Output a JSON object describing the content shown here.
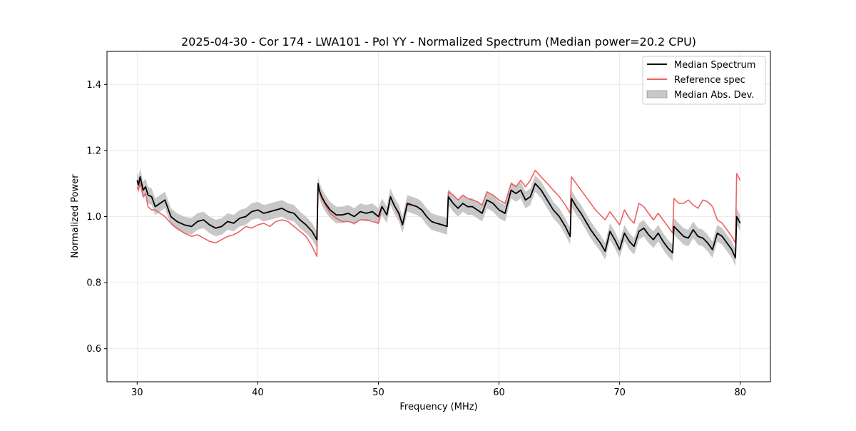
{
  "chart_data": {
    "type": "line",
    "title": "2025-04-30 - Cor 174 - LWA101 - Pol YY - Normalized Spectrum (Median power=20.2 CPU)",
    "xlabel": "Frequency (MHz)",
    "ylabel": "Normalized Power",
    "xlim": [
      27.5,
      82.5
    ],
    "ylim": [
      0.5,
      1.5
    ],
    "xticks": [
      30,
      40,
      50,
      60,
      70,
      80
    ],
    "xtick_labels": [
      "30",
      "40",
      "50",
      "60",
      "70",
      "80"
    ],
    "yticks": [
      0.6,
      0.8,
      1.0,
      1.2,
      1.4
    ],
    "ytick_labels": [
      "0.6",
      "0.8",
      "1.0",
      "1.2",
      "1.4"
    ],
    "grid": true,
    "legend_position": "upper right",
    "colors": {
      "median": "#000000",
      "reference": "#f06060",
      "mad": "#c8c8c8",
      "grid": "#e6e6e6"
    },
    "series": [
      {
        "name": "Median Spectrum",
        "x": [
          30.0,
          30.1,
          30.25,
          30.5,
          30.7,
          30.9,
          31.2,
          31.5,
          31.9,
          32.3,
          32.8,
          33.3,
          33.9,
          34.5,
          35.0,
          35.5,
          36.0,
          36.5,
          37.0,
          37.5,
          38.0,
          38.5,
          39.0,
          39.5,
          40.0,
          40.5,
          41.0,
          41.5,
          42.0,
          42.5,
          43.0,
          43.5,
          44.0,
          44.5,
          44.9,
          45.0,
          45.1,
          45.3,
          45.6,
          46.0,
          46.5,
          47.0,
          47.5,
          48.0,
          48.5,
          49.0,
          49.5,
          50.0,
          50.3,
          50.7,
          51.0,
          51.3,
          51.7,
          52.0,
          52.4,
          52.8,
          53.2,
          53.6,
          54.0,
          54.4,
          54.8,
          55.3,
          55.7,
          55.8,
          56.2,
          56.6,
          57.0,
          57.4,
          57.8,
          58.2,
          58.6,
          59.0,
          59.5,
          60.0,
          60.5,
          61.0,
          61.4,
          61.8,
          62.2,
          62.6,
          63.0,
          63.5,
          64.0,
          64.5,
          65.0,
          65.5,
          65.9,
          66.0,
          66.4,
          66.8,
          67.2,
          67.6,
          68.0,
          68.4,
          68.8,
          69.2,
          69.6,
          70.0,
          70.4,
          70.8,
          71.2,
          71.6,
          72.0,
          72.4,
          72.8,
          73.2,
          73.6,
          74.0,
          74.4,
          74.5,
          74.9,
          75.3,
          75.7,
          76.1,
          76.5,
          76.9,
          77.3,
          77.7,
          78.1,
          78.5,
          78.9,
          79.3,
          79.6,
          79.7,
          80.0
        ],
        "values": [
          1.11,
          1.095,
          1.12,
          1.08,
          1.09,
          1.065,
          1.06,
          1.03,
          1.04,
          1.05,
          1.0,
          0.985,
          0.975,
          0.97,
          0.985,
          0.99,
          0.975,
          0.965,
          0.97,
          0.985,
          0.98,
          0.995,
          1.0,
          1.015,
          1.02,
          1.01,
          1.015,
          1.02,
          1.025,
          1.015,
          1.01,
          0.99,
          0.975,
          0.955,
          0.93,
          1.1,
          1.08,
          1.06,
          1.04,
          1.02,
          1.005,
          1.005,
          1.01,
          1.0,
          1.015,
          1.01,
          1.015,
          1.0,
          1.03,
          1.005,
          1.06,
          1.035,
          1.01,
          0.975,
          1.04,
          1.035,
          1.03,
          1.02,
          1.0,
          0.985,
          0.98,
          0.975,
          0.97,
          1.06,
          1.04,
          1.025,
          1.04,
          1.03,
          1.03,
          1.02,
          1.01,
          1.05,
          1.04,
          1.02,
          1.01,
          1.08,
          1.07,
          1.08,
          1.05,
          1.06,
          1.1,
          1.08,
          1.05,
          1.02,
          1.0,
          0.97,
          0.94,
          1.055,
          1.03,
          1.01,
          0.985,
          0.96,
          0.94,
          0.92,
          0.895,
          0.955,
          0.93,
          0.9,
          0.95,
          0.925,
          0.91,
          0.955,
          0.965,
          0.945,
          0.93,
          0.95,
          0.925,
          0.905,
          0.89,
          0.97,
          0.955,
          0.94,
          0.935,
          0.96,
          0.94,
          0.935,
          0.92,
          0.9,
          0.95,
          0.94,
          0.92,
          0.9,
          0.875,
          1.0,
          0.98
        ]
      },
      {
        "name": "Reference spec",
        "x": [
          30.0,
          30.1,
          30.25,
          30.5,
          30.7,
          30.9,
          31.2,
          31.5,
          31.9,
          32.3,
          32.8,
          33.3,
          33.9,
          34.5,
          35.0,
          35.5,
          36.0,
          36.5,
          37.0,
          37.5,
          38.0,
          38.5,
          39.0,
          39.5,
          40.0,
          40.5,
          41.0,
          41.5,
          42.0,
          42.5,
          43.0,
          43.5,
          44.0,
          44.5,
          44.9,
          45.0,
          45.1,
          45.3,
          45.6,
          46.0,
          46.5,
          47.0,
          47.5,
          48.0,
          48.5,
          49.0,
          49.5,
          50.0,
          50.3,
          50.7,
          51.0,
          51.3,
          51.7,
          52.0,
          52.4,
          52.8,
          53.2,
          53.6,
          54.0,
          54.4,
          54.8,
          55.3,
          55.7,
          55.8,
          56.2,
          56.6,
          57.0,
          57.4,
          57.8,
          58.2,
          58.6,
          59.0,
          59.5,
          60.0,
          60.5,
          61.0,
          61.4,
          61.8,
          62.2,
          62.6,
          63.0,
          63.5,
          64.0,
          64.5,
          65.0,
          65.5,
          65.9,
          66.0,
          66.4,
          66.8,
          67.2,
          67.6,
          68.0,
          68.4,
          68.8,
          69.2,
          69.6,
          70.0,
          70.4,
          70.8,
          71.2,
          71.6,
          72.0,
          72.4,
          72.8,
          73.2,
          73.6,
          74.0,
          74.4,
          74.5,
          74.9,
          75.3,
          75.7,
          76.1,
          76.5,
          76.9,
          77.3,
          77.7,
          78.1,
          78.5,
          78.9,
          79.3,
          79.6,
          79.7,
          80.0
        ],
        "values": [
          1.09,
          1.08,
          1.1,
          1.06,
          1.07,
          1.03,
          1.02,
          1.02,
          1.01,
          1.0,
          0.98,
          0.965,
          0.95,
          0.94,
          0.945,
          0.935,
          0.925,
          0.92,
          0.93,
          0.94,
          0.945,
          0.955,
          0.97,
          0.965,
          0.975,
          0.98,
          0.97,
          0.985,
          0.99,
          0.985,
          0.97,
          0.955,
          0.94,
          0.91,
          0.88,
          1.1,
          1.075,
          1.055,
          1.035,
          1.01,
          0.995,
          0.985,
          0.985,
          0.98,
          0.99,
          0.99,
          0.985,
          0.98,
          1.03,
          1.005,
          1.06,
          1.035,
          1.005,
          0.975,
          1.035,
          1.035,
          1.03,
          1.02,
          1.0,
          0.985,
          0.98,
          0.975,
          0.97,
          1.075,
          1.065,
          1.05,
          1.065,
          1.055,
          1.05,
          1.045,
          1.035,
          1.075,
          1.065,
          1.05,
          1.04,
          1.1,
          1.09,
          1.11,
          1.09,
          1.11,
          1.14,
          1.12,
          1.1,
          1.08,
          1.06,
          1.035,
          1.01,
          1.12,
          1.1,
          1.08,
          1.06,
          1.04,
          1.02,
          1.005,
          0.99,
          1.015,
          0.995,
          0.975,
          1.02,
          0.995,
          0.98,
          1.04,
          1.03,
          1.01,
          0.99,
          1.01,
          0.99,
          0.97,
          0.95,
          1.055,
          1.04,
          1.04,
          1.05,
          1.035,
          1.025,
          1.05,
          1.045,
          1.03,
          0.99,
          0.98,
          0.96,
          0.94,
          0.92,
          1.13,
          1.11
        ]
      }
    ],
    "band": {
      "name": "Median Abs. Dev.",
      "series": "Median Spectrum",
      "half_width": 0.025
    }
  }
}
